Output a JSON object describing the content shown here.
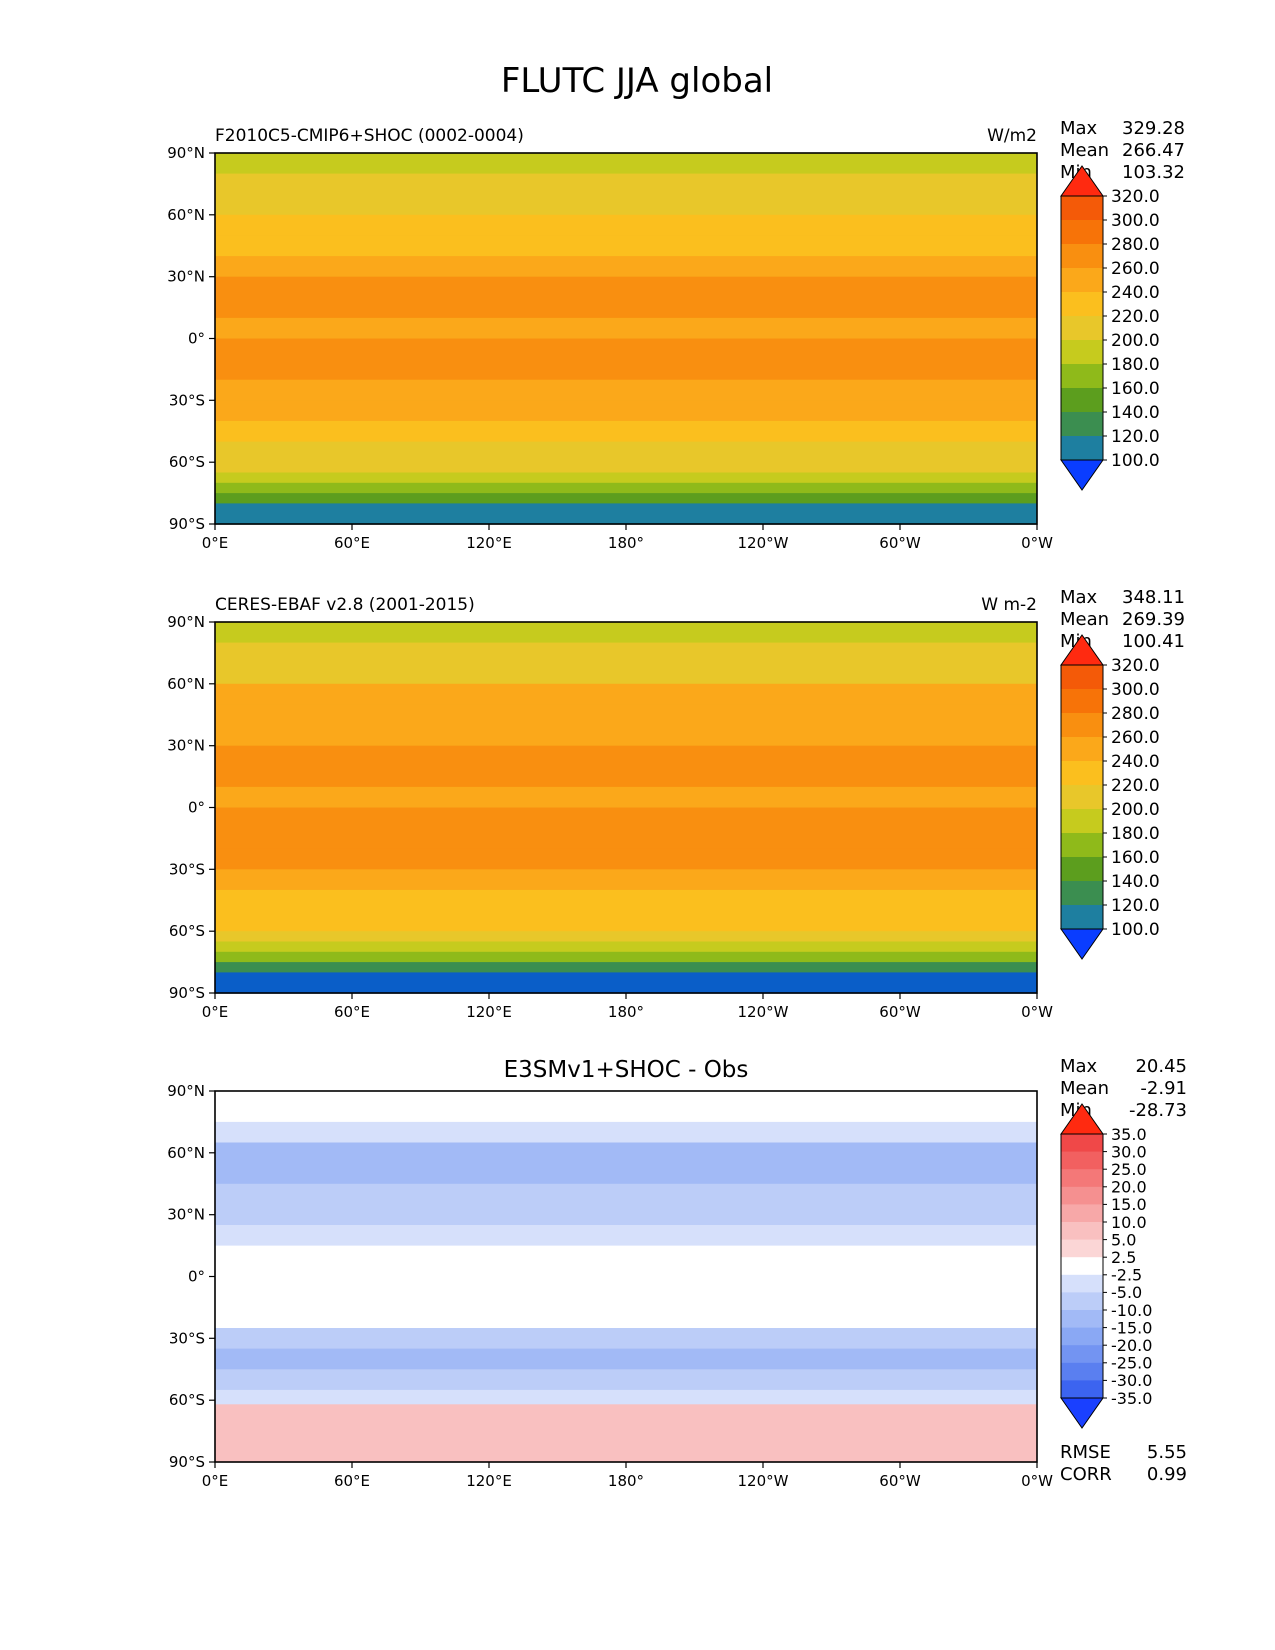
{
  "figure_title": "FLUTC JJA global",
  "chart_data": [
    {
      "type": "heatmap",
      "subtitle_left": "F2010C5-CMIP6+SHOC (0002-0004)",
      "subtitle_right": "W/m2",
      "stats": {
        "max_label": "Max",
        "max": "329.28",
        "mean_label": "Mean",
        "mean": "266.47",
        "min_label": "Min",
        "min": "103.32"
      },
      "colorbar_ticks": [
        "320.0",
        "300.0",
        "280.0",
        "260.0",
        "240.0",
        "220.0",
        "200.0",
        "180.0",
        "160.0",
        "140.0",
        "120.0",
        "100.0"
      ],
      "zonal_profile": [
        {
          "lat": 90,
          "value": 215
        },
        {
          "lat": 80,
          "value": 220
        },
        {
          "lat": 70,
          "value": 228
        },
        {
          "lat": 60,
          "value": 240
        },
        {
          "lat": 50,
          "value": 248
        },
        {
          "lat": 40,
          "value": 262
        },
        {
          "lat": 30,
          "value": 280
        },
        {
          "lat": 20,
          "value": 285
        },
        {
          "lat": 10,
          "value": 275
        },
        {
          "lat": 0,
          "value": 280
        },
        {
          "lat": -10,
          "value": 282
        },
        {
          "lat": -20,
          "value": 278
        },
        {
          "lat": -30,
          "value": 265
        },
        {
          "lat": -40,
          "value": 248
        },
        {
          "lat": -50,
          "value": 235
        },
        {
          "lat": -60,
          "value": 220
        },
        {
          "lat": -65,
          "value": 205
        },
        {
          "lat": -70,
          "value": 185
        },
        {
          "lat": -75,
          "value": 160
        },
        {
          "lat": -80,
          "value": 135
        },
        {
          "lat": -90,
          "value": 120
        }
      ]
    },
    {
      "type": "heatmap",
      "subtitle_left": "CERES-EBAF v2.8 (2001-2015)",
      "subtitle_right": "W m-2",
      "stats": {
        "max_label": "Max",
        "max": "348.11",
        "mean_label": "Mean",
        "mean": "269.39",
        "min_label": "Min",
        "min": "100.41"
      },
      "colorbar_ticks": [
        "320.0",
        "300.0",
        "280.0",
        "260.0",
        "240.0",
        "220.0",
        "200.0",
        "180.0",
        "160.0",
        "140.0",
        "120.0",
        "100.0"
      ],
      "zonal_profile": [
        {
          "lat": 90,
          "value": 215
        },
        {
          "lat": 80,
          "value": 222
        },
        {
          "lat": 70,
          "value": 232
        },
        {
          "lat": 60,
          "value": 262
        },
        {
          "lat": 50,
          "value": 268
        },
        {
          "lat": 40,
          "value": 275
        },
        {
          "lat": 30,
          "value": 288
        },
        {
          "lat": 20,
          "value": 285
        },
        {
          "lat": 10,
          "value": 275
        },
        {
          "lat": 0,
          "value": 282
        },
        {
          "lat": -10,
          "value": 285
        },
        {
          "lat": -20,
          "value": 282
        },
        {
          "lat": -30,
          "value": 275
        },
        {
          "lat": -40,
          "value": 258
        },
        {
          "lat": -50,
          "value": 242
        },
        {
          "lat": -60,
          "value": 225
        },
        {
          "lat": -65,
          "value": 205
        },
        {
          "lat": -70,
          "value": 180
        },
        {
          "lat": -75,
          "value": 150
        },
        {
          "lat": -80,
          "value": 118
        },
        {
          "lat": -90,
          "value": 110
        }
      ]
    },
    {
      "type": "heatmap",
      "title": "E3SMv1+SHOC - Obs",
      "stats": {
        "max_label": "Max",
        "max": "20.45",
        "mean_label": "Mean",
        "mean": "-2.91",
        "min_label": "Min",
        "min": "-28.73"
      },
      "rmse_label": "RMSE",
      "rmse": "5.55",
      "corr_label": "CORR",
      "corr": "0.99",
      "colorbar_ticks": [
        "35.0",
        "30.0",
        "25.0",
        "20.0",
        "15.0",
        "10.0",
        "5.0",
        "2.5",
        "-2.5",
        "-5.0",
        "-10.0",
        "-15.0",
        "-20.0",
        "-25.0",
        "-30.0",
        "-35.0"
      ],
      "zonal_profile": [
        {
          "lat": 90,
          "value": 0
        },
        {
          "lat": 85,
          "value": 0
        },
        {
          "lat": 75,
          "value": -3
        },
        {
          "lat": 65,
          "value": -14
        },
        {
          "lat": 55,
          "value": -12
        },
        {
          "lat": 45,
          "value": -8
        },
        {
          "lat": 35,
          "value": -6
        },
        {
          "lat": 25,
          "value": -4
        },
        {
          "lat": 15,
          "value": -2
        },
        {
          "lat": 5,
          "value": 0
        },
        {
          "lat": -5,
          "value": 1
        },
        {
          "lat": -15,
          "value": -2
        },
        {
          "lat": -25,
          "value": -6
        },
        {
          "lat": -35,
          "value": -11
        },
        {
          "lat": -45,
          "value": -9
        },
        {
          "lat": -55,
          "value": -3
        },
        {
          "lat": -62,
          "value": 6
        },
        {
          "lat": -70,
          "value": 8
        },
        {
          "lat": -80,
          "value": 6
        },
        {
          "lat": -90,
          "value": 4
        }
      ]
    }
  ],
  "axes": {
    "lat_ticks": [
      "90°N",
      "60°N",
      "30°N",
      "0°",
      "30°S",
      "60°S",
      "90°S"
    ],
    "lon_ticks": [
      "0°E",
      "60°E",
      "120°E",
      "180°",
      "120°W",
      "60°W",
      "0°W"
    ]
  },
  "colors": {
    "abs_levels": [
      "#0a3dff",
      "#0a5ec8",
      "#1e7fa0",
      "#3b8e50",
      "#5c9e1e",
      "#8fba1a",
      "#c6cb1e",
      "#e8c72a",
      "#fbbf1e",
      "#fba81a",
      "#f98f10",
      "#f77308",
      "#f45a08",
      "#ff2a10"
    ],
    "diff_levels": [
      "#1a40ff",
      "#3c64f0",
      "#5a7ff0",
      "#7394f2",
      "#8aa8f4",
      "#a2baf6",
      "#bccdf8",
      "#d6e0fb",
      "#eef2fd",
      "#ffffff",
      "#fdeeee",
      "#fbd6d6",
      "#f9c0c0",
      "#f7a8a8",
      "#f59090",
      "#f47878",
      "#f26060",
      "#f04848",
      "#ff2a10"
    ]
  }
}
